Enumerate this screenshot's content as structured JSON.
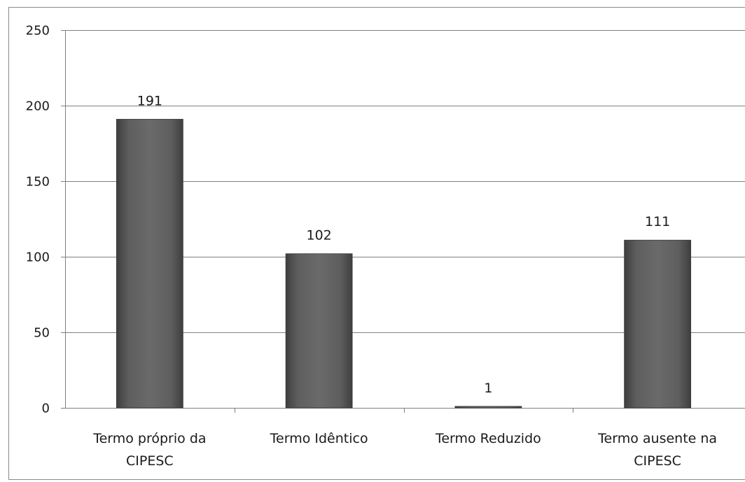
{
  "chart_data": {
    "type": "bar",
    "categories": [
      [
        "Termo próprio da",
        "CIPESC"
      ],
      [
        "Termo Idêntico"
      ],
      [
        "Termo Reduzido"
      ],
      [
        "Termo ausente na",
        "CIPESC"
      ]
    ],
    "values": [
      191,
      102,
      1,
      111
    ],
    "data_labels": [
      "191",
      "102",
      "1",
      "111"
    ],
    "ylim": [
      0,
      250
    ],
    "yticks": [
      0,
      50,
      100,
      150,
      200,
      250
    ],
    "title": "",
    "xlabel": "",
    "ylabel": "",
    "grid": true,
    "legend": "none",
    "bar_color": "#5a5a5a",
    "gridline_color": "#7f7f7f"
  }
}
